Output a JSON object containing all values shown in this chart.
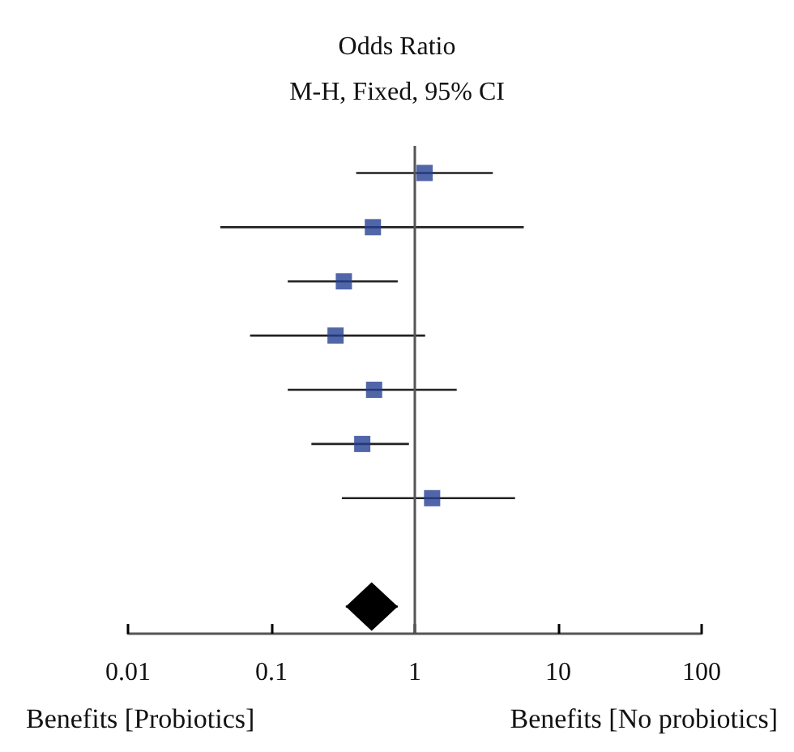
{
  "chart_data": {
    "type": "scatter",
    "title": "Odds Ratio",
    "subtitle": "M-H, Fixed, 95% CI",
    "orientation": "horizontal",
    "log": "x",
    "xlim": [
      0.01,
      100
    ],
    "xticks": [
      0.01,
      0.1,
      1,
      10,
      100
    ],
    "grid": false,
    "categories": [
      null,
      null,
      null,
      null,
      null,
      null,
      null,
      null,
      null
    ],
    "series": [
      {
        "color": "#253f94",
        "marker": "square",
        "values": [
          1.17,
          0.51,
          0.32,
          0.28,
          0.52,
          0.43,
          1.32,
          null,
          null
        ],
        "errors": [
          [
            0.39,
            3.5
          ],
          [
            0.044,
            5.75
          ],
          [
            0.13,
            0.76
          ],
          [
            0.071,
            1.18
          ],
          [
            0.13,
            1.96
          ],
          [
            0.19,
            0.91
          ],
          [
            0.31,
            5.0
          ],
          null,
          null
        ]
      },
      {
        "color": "#000000",
        "marker": "diamond",
        "values": [
          null,
          null,
          null,
          null,
          null,
          null,
          null,
          null,
          0.5
        ],
        "errors": [
          null,
          null,
          null,
          null,
          null,
          null,
          null,
          null,
          [
            0.33,
            0.76
          ]
        ]
      }
    ],
    "ref_lines": [
      {
        "axis": "x",
        "value": 1,
        "color": "#555555"
      }
    ],
    "annotations": [
      "Benefits [Probiotics]",
      "Benefits [No probiotics]"
    ]
  }
}
